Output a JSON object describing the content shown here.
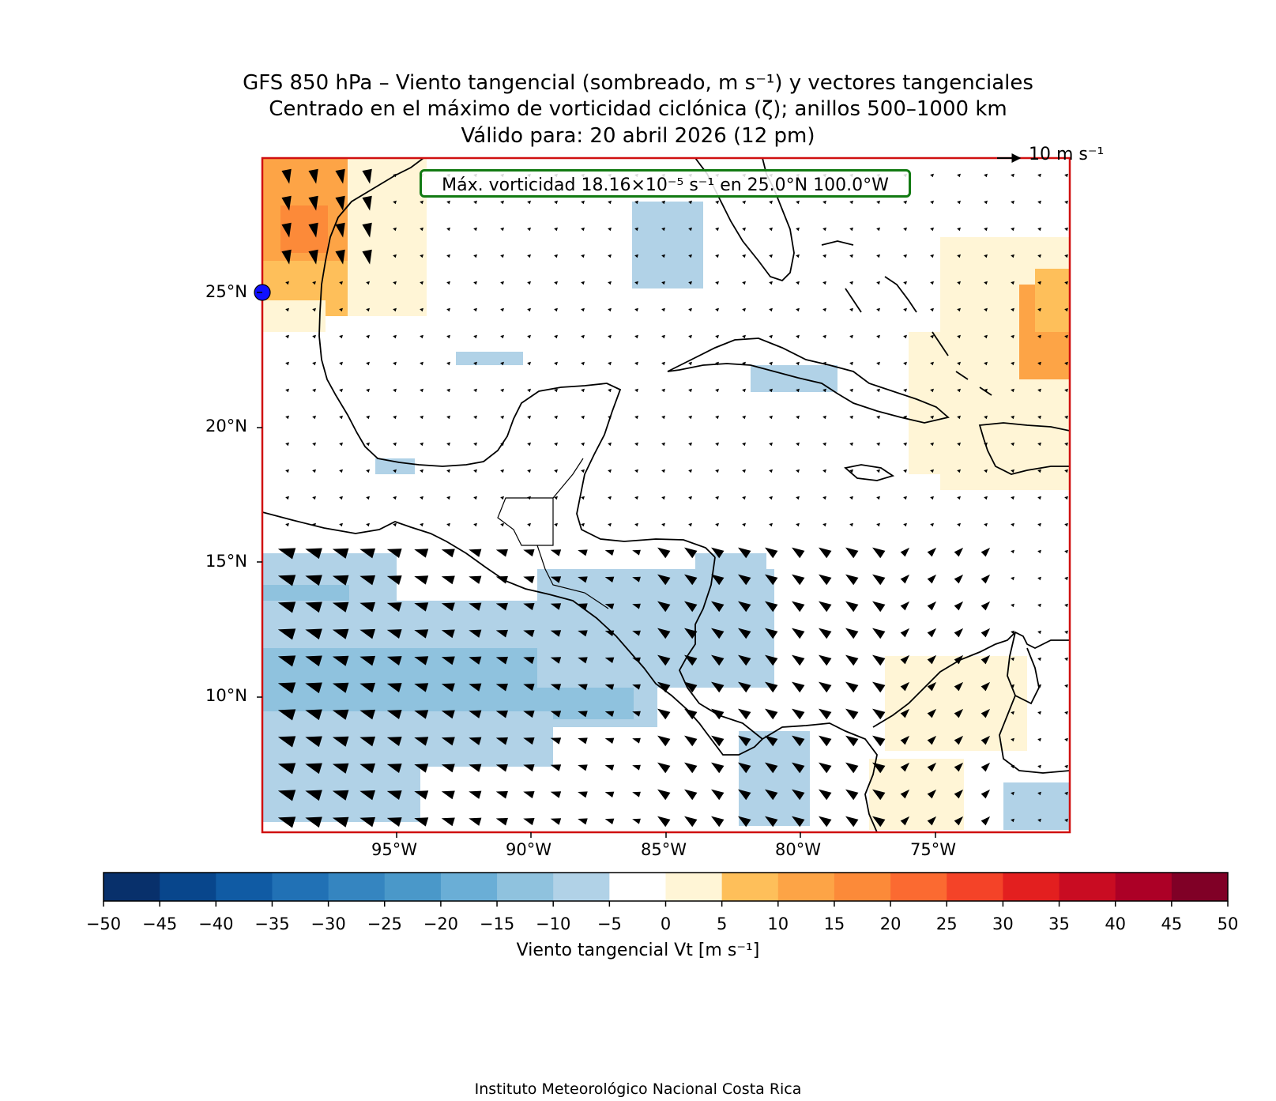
{
  "title": {
    "line1": "GFS 850 hPa – Viento tangencial (sombreado, m s⁻¹) y vectores tangenciales",
    "line2": "Centrado en el máximo de vorticidad ciclónica (ζ); anillos 500–1000 km",
    "line3": "Válido para: 20 abril 2026 (12 pm)"
  },
  "annotation": {
    "max_vorticity_text": "Máx. vorticidad 18.16×10⁻⁵ s⁻¹ en 25.0°N 100.0°W",
    "reference_vector_label": "10 m s⁻¹",
    "center_marker": {
      "lat": 25.0,
      "lon": -100.0,
      "color": "#1010ff"
    }
  },
  "map": {
    "lon_range": [
      -100,
      -70
    ],
    "lat_range": [
      5,
      30
    ],
    "frame_color": "#d01010",
    "lat_ticks": [
      "25°N",
      "20°N",
      "15°N",
      "10°N"
    ],
    "lon_ticks": [
      "95°W",
      "90°W",
      "85°W",
      "80°W",
      "75°W"
    ]
  },
  "colorbar": {
    "label": "Viento tangencial Vt [m s⁻¹]",
    "ticks": [
      "−50",
      "−45",
      "−40",
      "−35",
      "−30",
      "−25",
      "−20",
      "−15",
      "−10",
      "−5",
      "0",
      "5",
      "10",
      "15",
      "20",
      "25",
      "30",
      "35",
      "40",
      "45",
      "50"
    ],
    "colors": [
      "#08306b",
      "#08468c",
      "#105ba4",
      "#2171b5",
      "#3585c0",
      "#4a98c9",
      "#6aaed6",
      "#8fc2de",
      "#b1d2e7",
      "#ffffff",
      "#fff5d6",
      "#febf5a",
      "#fda446",
      "#fc8a39",
      "#fb6a31",
      "#f44328",
      "#e31f1f",
      "#c90c22",
      "#ac0026",
      "#800026"
    ]
  },
  "footer": "Instituto Meteorológico Nacional Costa Rica"
}
